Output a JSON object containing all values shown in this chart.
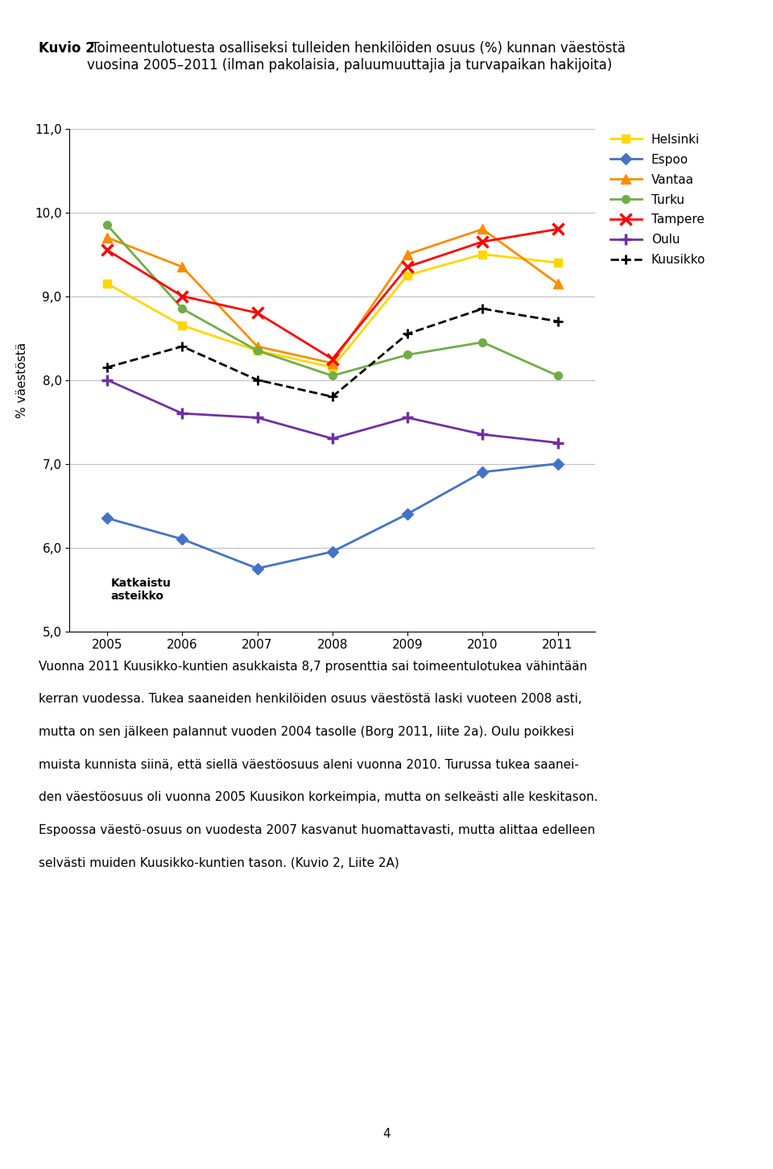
{
  "title_bold": "Kuvio 2",
  "title_rest": " Toimeentulotuesta osalliseksi tulleiden henkilöiden osuus (%) kunnan väestöstä\nvuosina 2005–2011 (ilman pakolaisia, paluumuuttajia ja turvapaikan hakijoita)",
  "ylabel": "% väestöstä",
  "years": [
    2005,
    2006,
    2007,
    2008,
    2009,
    2010,
    2011
  ],
  "series": {
    "Helsinki": {
      "values": [
        9.15,
        8.65,
        8.35,
        8.15,
        9.25,
        9.5,
        9.4
      ],
      "color": "#FFD700",
      "marker": "s",
      "linestyle": "-",
      "linewidth": 2.0,
      "markersize": 7
    },
    "Espoo": {
      "values": [
        6.35,
        6.1,
        5.75,
        5.95,
        6.4,
        6.9,
        7.0
      ],
      "color": "#4472C4",
      "marker": "D",
      "linestyle": "-",
      "linewidth": 2.0,
      "markersize": 7
    },
    "Vantaa": {
      "values": [
        9.7,
        9.35,
        8.4,
        8.2,
        9.5,
        9.8,
        9.15
      ],
      "color": "#FF8C00",
      "marker": "^",
      "linestyle": "-",
      "linewidth": 2.0,
      "markersize": 8
    },
    "Turku": {
      "values": [
        9.85,
        8.85,
        8.35,
        8.05,
        8.3,
        8.45,
        8.05
      ],
      "color": "#70AD47",
      "marker": "o",
      "linestyle": "-",
      "linewidth": 2.0,
      "markersize": 7
    },
    "Tampere": {
      "values": [
        9.55,
        9.0,
        8.8,
        8.25,
        9.35,
        9.65,
        9.8
      ],
      "color": "#FF0000",
      "marker": "x",
      "linestyle": "-",
      "linewidth": 2.0,
      "markersize": 10
    },
    "Oulu": {
      "values": [
        8.0,
        7.6,
        7.55,
        7.3,
        7.55,
        7.35,
        7.25
      ],
      "color": "#7030A0",
      "marker": "+",
      "linestyle": "-",
      "linewidth": 2.0,
      "markersize": 10
    },
    "Kuusikko": {
      "values": [
        8.15,
        8.4,
        8.0,
        7.8,
        8.55,
        8.85,
        8.7
      ],
      "color": "#000000",
      "marker": "+",
      "linestyle": "--",
      "linewidth": 2.0,
      "markersize": 8
    }
  },
  "ylim": [
    5.0,
    11.0
  ],
  "yticks": [
    5.0,
    6.0,
    7.0,
    8.0,
    9.0,
    10.0,
    11.0
  ],
  "ytick_labels": [
    "5,0",
    "6,0",
    "7,0",
    "8,0",
    "9,0",
    "10,0",
    "11,0"
  ],
  "annotation": "Katkaistu\nasteikko",
  "body_lines": [
    "Vuonna 2011 Kuusikko-kuntien asukkaista 8,7 prosenttia sai toimeentulotukea vähintään",
    "kerran vuodessa. Tukea saaneiden henkilöiden osuus väestöstä laski vuoteen 2008 asti,",
    "mutta on sen jälkeen palannut vuoden 2004 tasolle (Borg 2011, liite 2a). Oulu poikkesi",
    "muista kunnista siinä, että siellä väestöosuus aleni vuonna 2010. Turussa tukea saanei-",
    "den väestöosuus oli vuonna 2005 Kuusikon korkeimpia, mutta on selkeästi alle keskitason.",
    "Espoossa väestö-osuus on vuodesta 2007 kasvanut huomattavasti, mutta alittaa edelleen",
    "selvästi muiden Kuusikko-kuntien tason. (Kuvio 2, Liite 2A)"
  ],
  "page_number": "4",
  "legend_order": [
    "Helsinki",
    "Espoo",
    "Vantaa",
    "Turku",
    "Tampere",
    "Oulu",
    "Kuusikko"
  ],
  "background_color": "#FFFFFF",
  "grid_color": "#C0C0C0"
}
